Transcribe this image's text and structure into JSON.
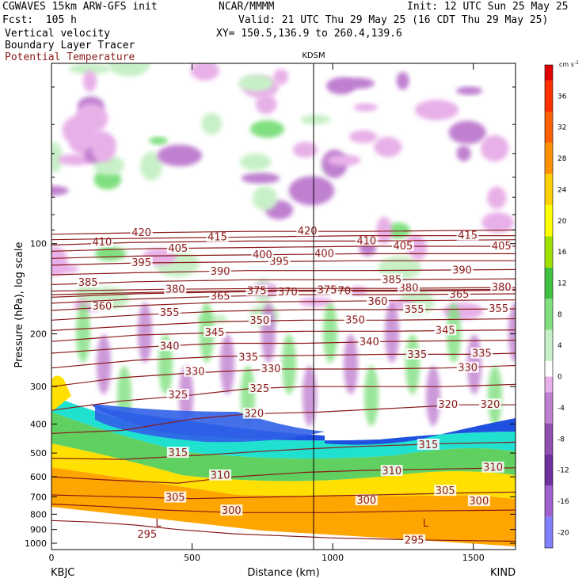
{
  "header": {
    "model": "CGWAVES 15km ARW-GFS init",
    "center": "NCAR/MMMM",
    "init": "Init: 12 UTC Sun 25 May 25",
    "fcst": "Fcst:  105 h",
    "valid": "Valid: 21 UTC Thu 29 May 25 (16 CDT Thu 29 May 25)",
    "xy": "XY= 150.5,136.9 to 260.4,139.6",
    "fields": [
      "Vertical velocity",
      "Boundary Layer Tracer",
      "Potential Temperature"
    ]
  },
  "chart_data": {
    "type": "heatmap",
    "title": "",
    "station_marker": "KDSM",
    "xlabel": "Distance (km)",
    "ylabel": "Pressure (hPa), log scale",
    "x_ticks": [
      0,
      500,
      1000,
      1500
    ],
    "x_tick_labels": [
      "0",
      "500",
      "1000",
      "1500"
    ],
    "xlim": [
      0,
      1650
    ],
    "x_endpoints": [
      "KBJC",
      "KIND"
    ],
    "y_scale": "log",
    "y_ticks": [
      100,
      200,
      300,
      400,
      500,
      600,
      700,
      800,
      900,
      1000
    ],
    "y_tick_labels": [
      "100",
      "200",
      "300",
      "400",
      "500",
      "600",
      "700",
      "800",
      "900",
      "1000"
    ],
    "ylim": [
      1050,
      25
    ],
    "colorbar": {
      "unit": "cm s",
      "unit_exp": "-1",
      "ticks": [
        -20,
        -16,
        -12,
        -8,
        -4,
        0,
        4,
        8,
        12,
        16,
        20,
        24,
        28,
        32,
        36
      ],
      "tick_labels": [
        "-20",
        "-16",
        "-12",
        "-8",
        "-4",
        "0",
        "4",
        "8",
        "12",
        "16",
        "20",
        "24",
        "28",
        "32",
        "36"
      ],
      "range": [
        -22,
        40
      ],
      "colors": [
        "#8080ff",
        "#a060d0",
        "#7030a0",
        "#9050b0",
        "#c080d0",
        "#e8b0e8",
        "#ffffff",
        "#c8f0c8",
        "#80e080",
        "#40c040",
        "#a0e000",
        "#ffff00",
        "#ffd000",
        "#ff9000",
        "#ff6000",
        "#ff3000",
        "#e00000"
      ]
    },
    "isentropes": [
      {
        "label": "295",
        "points": [
          [
            0,
            840
          ],
          [
            150,
            850
          ],
          [
            300,
            870
          ],
          [
            450,
            900
          ],
          [
            650,
            930
          ],
          [
            1000,
            960
          ],
          [
            1300,
            975
          ],
          [
            1650,
            985
          ]
        ],
        "labels_at": [
          [
            340,
            935
          ],
          [
            1290,
            980
          ]
        ]
      },
      {
        "label": "300",
        "points": [
          [
            0,
            740
          ],
          [
            200,
            755
          ],
          [
            400,
            775
          ],
          [
            650,
            790
          ],
          [
            1000,
            790
          ],
          [
            1300,
            780
          ],
          [
            1650,
            775
          ]
        ],
        "labels_at": [
          [
            640,
            780
          ],
          [
            1120,
            720
          ],
          [
            1520,
            725
          ]
        ]
      },
      {
        "label": "305",
        "points": [
          [
            0,
            690
          ],
          [
            250,
            700
          ],
          [
            500,
            710
          ],
          [
            800,
            700
          ],
          [
            1150,
            690
          ],
          [
            1450,
            680
          ],
          [
            1650,
            675
          ]
        ],
        "labels_at": [
          [
            440,
            705
          ],
          [
            1400,
            670
          ]
        ]
      },
      {
        "label": "310",
        "points": [
          [
            0,
            600
          ],
          [
            200,
            615
          ],
          [
            450,
            630
          ],
          [
            650,
            600
          ],
          [
            900,
            580
          ],
          [
            1150,
            570
          ],
          [
            1400,
            565
          ],
          [
            1650,
            560
          ]
        ],
        "labels_at": [
          [
            600,
            595
          ],
          [
            1210,
            575
          ],
          [
            1570,
            560
          ]
        ]
      },
      {
        "label": "315",
        "points": [
          [
            0,
            520
          ],
          [
            250,
            525
          ],
          [
            500,
            510
          ],
          [
            800,
            490
          ],
          [
            1100,
            475
          ],
          [
            1400,
            465
          ],
          [
            1650,
            460
          ]
        ],
        "labels_at": [
          [
            450,
            500
          ],
          [
            1340,
            470
          ]
        ]
      },
      {
        "label": "320",
        "points": [
          [
            0,
            430
          ],
          [
            250,
            420
          ],
          [
            500,
            385
          ],
          [
            700,
            370
          ],
          [
            950,
            365
          ],
          [
            1200,
            355
          ],
          [
            1450,
            345
          ],
          [
            1650,
            345
          ]
        ],
        "labels_at": [
          [
            720,
            370
          ],
          [
            1410,
            345
          ],
          [
            1560,
            345
          ]
        ]
      },
      {
        "label": "325",
        "points": [
          [
            0,
            360
          ],
          [
            250,
            335
          ],
          [
            500,
            320
          ],
          [
            700,
            305
          ],
          [
            900,
            300
          ],
          [
            1150,
            300
          ],
          [
            1400,
            300
          ],
          [
            1650,
            295
          ]
        ],
        "labels_at": [
          [
            450,
            320
          ],
          [
            740,
            305
          ]
        ]
      },
      {
        "label": "330",
        "points": [
          [
            0,
            300
          ],
          [
            250,
            280
          ],
          [
            500,
            270
          ],
          [
            800,
            262
          ],
          [
            1100,
            262
          ],
          [
            1400,
            260
          ],
          [
            1650,
            255
          ]
        ],
        "labels_at": [
          [
            510,
            268
          ],
          [
            780,
            262
          ],
          [
            1480,
            260
          ]
        ]
      },
      {
        "label": "335",
        "points": [
          [
            0,
            260
          ],
          [
            300,
            245
          ],
          [
            600,
            238
          ],
          [
            900,
            236
          ],
          [
            1200,
            234
          ],
          [
            1500,
            234
          ],
          [
            1650,
            232
          ]
        ],
        "labels_at": [
          [
            700,
            240
          ],
          [
            1300,
            235
          ],
          [
            1530,
            233
          ]
        ]
      },
      {
        "label": "340",
        "points": [
          [
            0,
            232
          ],
          [
            300,
            222
          ],
          [
            600,
            215
          ],
          [
            900,
            215
          ],
          [
            1200,
            212
          ],
          [
            1650,
            210
          ]
        ],
        "labels_at": [
          [
            420,
            220
          ],
          [
            1130,
            213
          ]
        ]
      },
      {
        "label": "345",
        "points": [
          [
            0,
            212
          ],
          [
            300,
            202
          ],
          [
            600,
            198
          ],
          [
            900,
            196
          ],
          [
            1200,
            196
          ],
          [
            1650,
            194
          ]
        ],
        "labels_at": [
          [
            580,
            198
          ],
          [
            1400,
            195
          ]
        ]
      },
      {
        "label": "350",
        "points": [
          [
            0,
            195
          ],
          [
            300,
            188
          ],
          [
            600,
            182
          ],
          [
            900,
            180
          ],
          [
            1200,
            180
          ],
          [
            1650,
            178
          ]
        ],
        "labels_at": [
          [
            740,
            181
          ],
          [
            1080,
            180
          ]
        ]
      },
      {
        "label": "355",
        "points": [
          [
            0,
            180
          ],
          [
            300,
            173
          ],
          [
            600,
            168
          ],
          [
            900,
            166
          ],
          [
            1200,
            166
          ],
          [
            1650,
            165
          ]
        ],
        "labels_at": [
          [
            420,
            170
          ],
          [
            1290,
            166
          ],
          [
            1590,
            165
          ]
        ]
      },
      {
        "label": "360",
        "points": [
          [
            0,
            167
          ],
          [
            300,
            161
          ],
          [
            600,
            157
          ],
          [
            900,
            156
          ],
          [
            1200,
            155
          ],
          [
            1650,
            154
          ]
        ],
        "labels_at": [
          [
            180,
            162
          ],
          [
            1160,
            156
          ]
        ]
      },
      {
        "label": "365",
        "points": [
          [
            0,
            158
          ],
          [
            300,
            153
          ],
          [
            600,
            150
          ],
          [
            900,
            148
          ],
          [
            1200,
            148
          ],
          [
            1650,
            147
          ]
        ],
        "labels_at": [
          [
            600,
            150
          ],
          [
            1450,
            148
          ]
        ]
      },
      {
        "label": "370",
        "points": [
          [
            0,
            151
          ],
          [
            300,
            147
          ],
          [
            600,
            145
          ],
          [
            900,
            144
          ],
          [
            1200,
            144
          ],
          [
            1650,
            143
          ]
        ],
        "labels_at": [
          [
            840,
            145
          ],
          [
            1030,
            144
          ]
        ]
      },
      {
        "label": "375",
        "points": [
          [
            0,
            148
          ],
          [
            400,
            145
          ],
          [
            800,
            143
          ],
          [
            1200,
            143
          ],
          [
            1650,
            142
          ]
        ],
        "labels_at": [
          [
            730,
            144
          ],
          [
            980,
            143
          ]
        ]
      },
      {
        "label": "380",
        "points": [
          [
            0,
            144
          ],
          [
            400,
            142
          ],
          [
            800,
            141
          ],
          [
            1200,
            141
          ],
          [
            1650,
            140
          ]
        ],
        "labels_at": [
          [
            440,
            142
          ],
          [
            1270,
            141
          ],
          [
            1600,
            140
          ]
        ]
      },
      {
        "label": "385",
        "points": [
          [
            0,
            137
          ],
          [
            300,
            134
          ],
          [
            700,
            132
          ],
          [
            1100,
            132
          ],
          [
            1650,
            131
          ]
        ],
        "labels_at": [
          [
            130,
            135
          ],
          [
            1210,
            132
          ]
        ]
      },
      {
        "label": "390",
        "points": [
          [
            0,
            127
          ],
          [
            300,
            125
          ],
          [
            700,
            123
          ],
          [
            1100,
            123
          ],
          [
            1650,
            122
          ]
        ],
        "labels_at": [
          [
            600,
            124
          ],
          [
            1460,
            123
          ]
        ]
      },
      {
        "label": "395",
        "points": [
          [
            0,
            118
          ],
          [
            300,
            116
          ],
          [
            700,
            115
          ],
          [
            1100,
            114
          ],
          [
            1650,
            114
          ]
        ],
        "labels_at": [
          [
            320,
            116
          ],
          [
            810,
            115
          ]
        ]
      },
      {
        "label": "400",
        "points": [
          [
            0,
            112
          ],
          [
            300,
            110
          ],
          [
            700,
            109
          ],
          [
            1100,
            108
          ],
          [
            1650,
            108
          ]
        ],
        "labels_at": [
          [
            750,
            109
          ],
          [
            970,
            108
          ]
        ]
      },
      {
        "label": "405",
        "points": [
          [
            0,
            106
          ],
          [
            300,
            104
          ],
          [
            700,
            103
          ],
          [
            1100,
            102
          ],
          [
            1650,
            102
          ]
        ],
        "labels_at": [
          [
            450,
            104
          ],
          [
            1250,
            102
          ],
          [
            1600,
            102
          ]
        ]
      },
      {
        "label": "410",
        "points": [
          [
            0,
            101
          ],
          [
            300,
            99
          ],
          [
            700,
            98
          ],
          [
            1100,
            98
          ],
          [
            1650,
            97
          ]
        ],
        "labels_at": [
          [
            180,
            99
          ],
          [
            1120,
            98
          ]
        ]
      },
      {
        "label": "415",
        "points": [
          [
            0,
            97
          ],
          [
            300,
            96
          ],
          [
            700,
            95
          ],
          [
            1100,
            94
          ],
          [
            1650,
            94
          ]
        ],
        "labels_at": [
          [
            590,
            95
          ],
          [
            1480,
            94
          ]
        ]
      },
      {
        "label": "420",
        "points": [
          [
            0,
            93
          ],
          [
            300,
            92
          ],
          [
            700,
            91
          ],
          [
            1100,
            91
          ],
          [
            1650,
            90
          ]
        ],
        "labels_at": [
          [
            320,
            92
          ],
          [
            910,
            91
          ]
        ]
      }
    ],
    "low_markers": [
      {
        "label": "L",
        "x": 380,
        "p": 880
      },
      {
        "label": "L",
        "x": 1330,
        "p": 880
      }
    ]
  }
}
